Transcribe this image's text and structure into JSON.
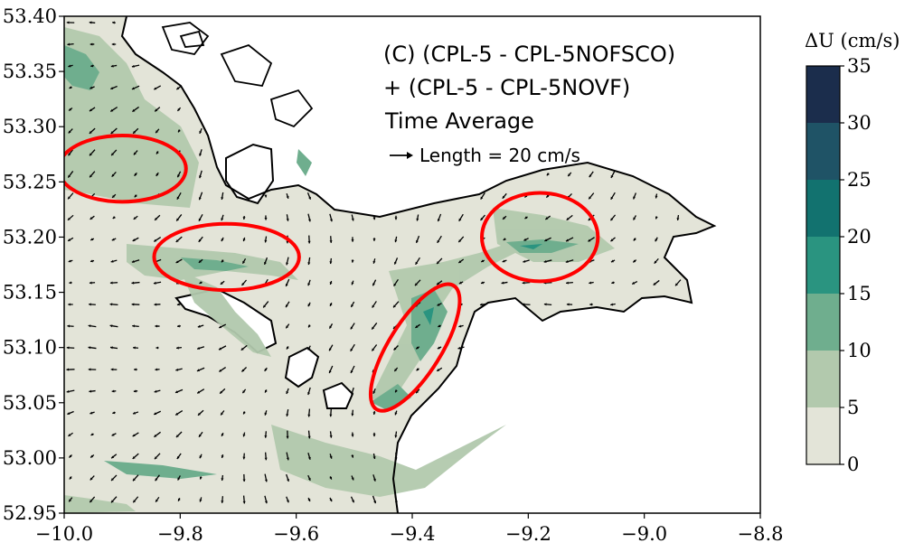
{
  "chart_data": {
    "type": "heatmap",
    "title_line1": "(C) (CPL-5 - CPL-5NOFSCO)",
    "title_line2": "+ (CPL-5 - CPL-5NOVF)",
    "subtitle": "Time Average",
    "vector_key": "Length = 20 cm/s",
    "xlim": [
      -10.0,
      -8.8
    ],
    "ylim": [
      52.95,
      53.4
    ],
    "xticks": [
      "−10.0",
      "−9.8",
      "−9.6",
      "−9.4",
      "−9.2",
      "−9.0",
      "−8.8"
    ],
    "yticks": [
      "52.95",
      "53.00",
      "53.05",
      "53.10",
      "53.15",
      "53.20",
      "53.25",
      "53.30",
      "53.35",
      "53.40"
    ],
    "colorbar": {
      "label": "ΔU (cm/s)",
      "levels": [
        0,
        5,
        10,
        15,
        20,
        25,
        30,
        35
      ],
      "ticks": [
        "0",
        "5",
        "10",
        "15",
        "20",
        "25",
        "30",
        "35"
      ],
      "colors": [
        "#e3e4d8",
        "#b2c9ad",
        "#6fae8e",
        "#2a9480",
        "#12726f",
        "#1f5366",
        "#1b2d4c"
      ]
    },
    "highlight_ellipses": [
      {
        "cx": -9.9,
        "cy": 53.262,
        "rx": 0.11,
        "ry": 0.03
      },
      {
        "cx": -9.72,
        "cy": 53.182,
        "rx": 0.125,
        "ry": 0.03
      },
      {
        "cx": -9.395,
        "cy": 53.1,
        "rx": 0.045,
        "ry": 0.066
      },
      {
        "cx": -9.18,
        "cy": 53.2,
        "rx": 0.1,
        "ry": 0.04
      }
    ]
  }
}
